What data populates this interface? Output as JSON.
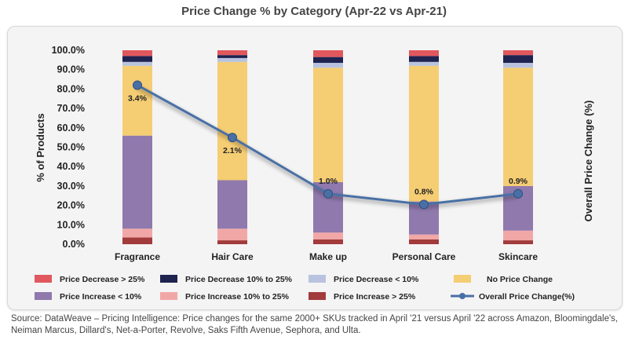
{
  "chart_data": {
    "type": "bar",
    "stacked": true,
    "title": "Price Change % by Category (Apr-22 vs Apr-21)",
    "ylabel": "% of Products",
    "y2label": "Overall Price Change (%)",
    "ylim": [
      0,
      100
    ],
    "yticks": [
      "0.0%",
      "10.0%",
      "20.0%",
      "30.0%",
      "40.0%",
      "50.0%",
      "60.0%",
      "70.0%",
      "80.0%",
      "90.0%",
      "100.0%"
    ],
    "categories": [
      "Fragrance",
      "Hair Care",
      "Make up",
      "Personal Care",
      "Skincare"
    ],
    "series": [
      {
        "name": "Price Increase > 25%",
        "color": "#a23b3b",
        "values": [
          3.5,
          2.0,
          2.5,
          2.5,
          2.0
        ]
      },
      {
        "name": "Price Increase 10% to 25%",
        "color": "#f2a7a7",
        "values": [
          4.5,
          6.0,
          3.5,
          2.5,
          5.0
        ]
      },
      {
        "name": "Price Increase < 10%",
        "color": "#8f79ad",
        "values": [
          48.0,
          25.0,
          26.0,
          17.0,
          23.0
        ]
      },
      {
        "name": "No Price Change",
        "color": "#f5cd73",
        "values": [
          36.0,
          61.0,
          59.0,
          70.0,
          61.0
        ]
      },
      {
        "name": "Price Decrease < 10%",
        "color": "#b9c3df",
        "values": [
          2.0,
          2.0,
          2.5,
          2.0,
          2.5
        ]
      },
      {
        "name": "Price Decrease 10% to 25%",
        "color": "#1e2350",
        "values": [
          3.0,
          1.5,
          3.0,
          3.0,
          4.0
        ]
      },
      {
        "name": "Price Decrease > 25%",
        "color": "#e0585d",
        "values": [
          3.0,
          2.5,
          3.5,
          3.0,
          2.5
        ]
      }
    ],
    "line": {
      "name": "Overall Price Change(%)",
      "color": "#4a6fa5",
      "values": [
        3.4,
        2.1,
        1.0,
        0.8,
        0.9
      ],
      "labels": [
        "3.4%",
        "2.1%",
        "1.0%",
        "0.8%",
        "0.9%"
      ],
      "y_position_pct": [
        82,
        55,
        26,
        20.5,
        26
      ]
    },
    "legend_order": [
      "Price Decrease > 25%",
      "Price Decrease 10% to 25%",
      "Price Decrease < 10%",
      "No Price Change",
      "Price Increase < 10%",
      "Price Increase 10% to 25%",
      "Price Increase > 25%",
      "Overall Price Change(%)"
    ],
    "legend_placement": "bottom",
    "grid": false
  },
  "source": "Source: DataWeave – Pricing Intelligence: Price changes for the same 2000+ SKUs tracked in April '21 versus April '22 across Amazon, Bloomingdale's, Neiman Marcus, Dillard's, Net-a-Porter, Revolve, Saks Fifth Avenue, Sephora, and Ulta."
}
